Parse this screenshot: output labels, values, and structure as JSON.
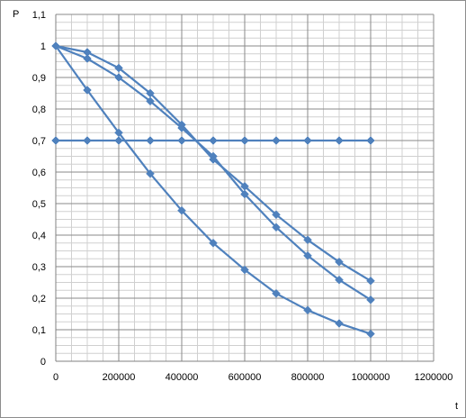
{
  "chart_data": {
    "type": "line",
    "title": "",
    "xlabel": "t",
    "ylabel": "P",
    "xlim": [
      0,
      1200000
    ],
    "ylim": [
      0,
      1.1
    ],
    "x_ticks": [
      0,
      200000,
      400000,
      600000,
      800000,
      1000000,
      1200000
    ],
    "x_tick_labels": [
      "0",
      "200000",
      "400000",
      "600000",
      "800000",
      "1000000",
      "1200000"
    ],
    "y_ticks": [
      0,
      0.1,
      0.2,
      0.3,
      0.4,
      0.5,
      0.6,
      0.7,
      0.8,
      0.9,
      1.0,
      1.1
    ],
    "y_tick_labels": [
      "0",
      "0,1",
      "0,2",
      "0,3",
      "0,4",
      "0,5",
      "0,6",
      "0,7",
      "0,8",
      "0,9",
      "1",
      "1,1"
    ],
    "x_minor_step": 50000,
    "y_minor_step": 0.025,
    "grid": true,
    "legend": "none",
    "marker": "diamond",
    "series_color": "#4f81bd",
    "x": [
      0,
      100000,
      200000,
      300000,
      400000,
      500000,
      600000,
      700000,
      800000,
      900000,
      1000000
    ],
    "series": [
      {
        "values": [
          1.0,
          0.98,
          0.93,
          0.85,
          0.75,
          0.64,
          0.555,
          0.465,
          0.385,
          0.315,
          0.255
        ]
      },
      {
        "values": [
          1.0,
          0.96,
          0.9,
          0.825,
          0.74,
          0.65,
          0.53,
          0.425,
          0.335,
          0.258,
          0.195
        ]
      },
      {
        "values": [
          1.0,
          0.86,
          0.725,
          0.595,
          0.478,
          0.375,
          0.29,
          0.215,
          0.162,
          0.12,
          0.087
        ]
      },
      {
        "values": [
          0.7,
          0.7,
          0.7,
          0.7,
          0.7,
          0.7,
          0.7,
          0.7,
          0.7,
          0.7,
          0.7
        ]
      }
    ]
  }
}
